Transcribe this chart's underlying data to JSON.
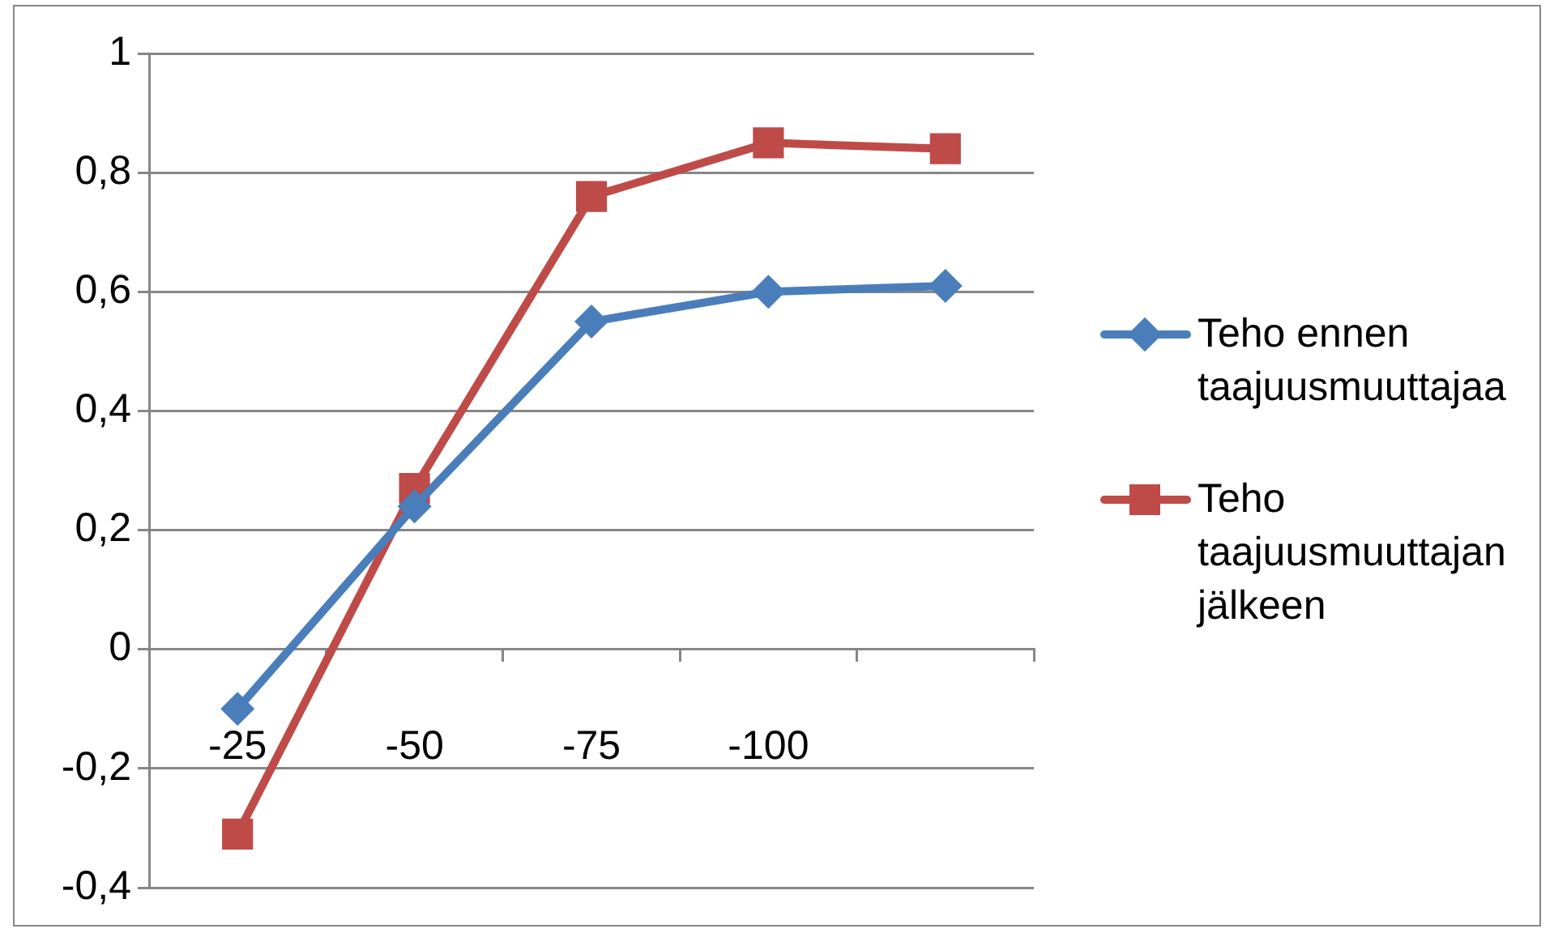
{
  "chart_data": {
    "type": "line",
    "categories": [
      "-25",
      "-50",
      "-75",
      "-100",
      null
    ],
    "series": [
      {
        "name": "Teho ennen taajuusmuuttajaa",
        "color": "#4a7ebb",
        "marker": "diamond",
        "values": [
          -0.1,
          0.24,
          0.55,
          0.6,
          0.61
        ]
      },
      {
        "name": "Teho taajuusmuuttajan jälkeen",
        "color": "#be4b48",
        "marker": "square",
        "values": [
          -0.31,
          0.27,
          0.76,
          0.85,
          0.84
        ]
      }
    ],
    "ylim": [
      -0.4,
      1
    ],
    "yticks": [
      {
        "value": -0.4,
        "label": "-0,4"
      },
      {
        "value": -0.2,
        "label": "-0,2"
      },
      0,
      {
        "value": 0.2,
        "label": "0,2"
      },
      {
        "value": 0.4,
        "label": "0,4"
      },
      {
        "value": 0.6,
        "label": "0,6"
      },
      {
        "value": 0.8,
        "label": "0,8"
      },
      1
    ],
    "grid": "y",
    "legend": "right"
  }
}
